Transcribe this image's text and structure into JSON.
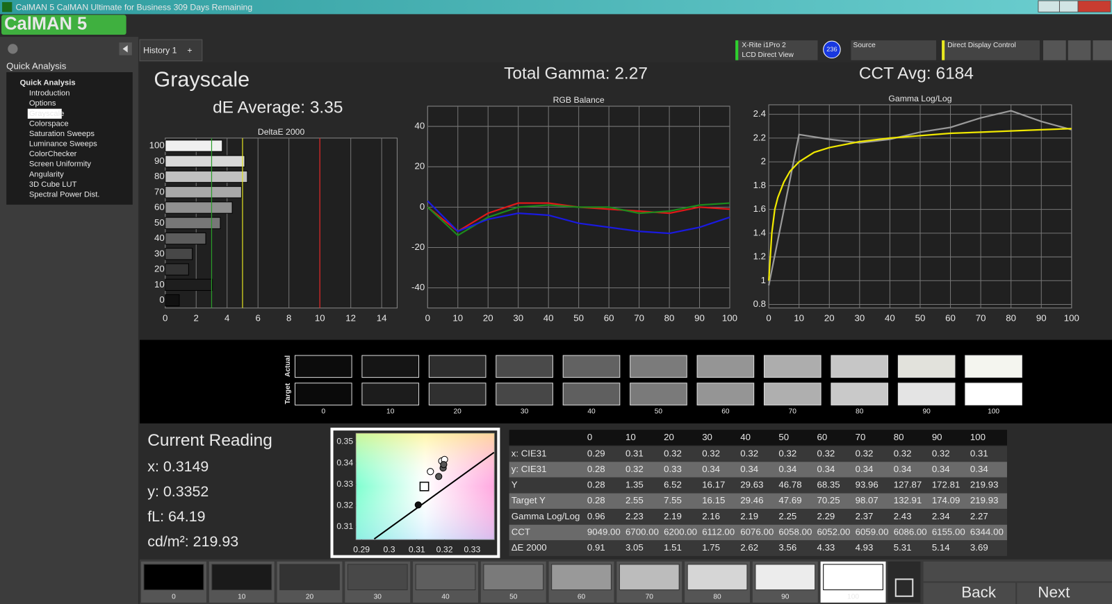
{
  "window": {
    "title": "CalMAN 5 CalMAN Ultimate for Business 309 Days Remaining",
    "logo": "CalMAN 5"
  },
  "sidebar": {
    "header": "Quick Analysis",
    "tree_root": "Quick Analysis",
    "items": [
      "Introduction",
      "Options",
      "Grayscale",
      "Colorspace",
      "Saturation Sweeps",
      "Luminance Sweeps",
      "ColorChecker",
      "Screen Uniformity",
      "Angularity",
      "3D Cube LUT",
      "Spectral Power Dist."
    ],
    "selected": 2
  },
  "tabs": [
    "History 1",
    "+"
  ],
  "devices": {
    "meter": "X-Rite i1Pro 2",
    "meter_mode": "LCD Direct View",
    "badge": "236",
    "source": "Source",
    "display": "Direct Display Control"
  },
  "summary": {
    "page": "Grayscale",
    "de_average": "dE Average: 3.35",
    "total_gamma": "Total Gamma: 2.27",
    "cct_avg": "CCT Avg: 6184"
  },
  "swatches": {
    "actual_label": "Actual",
    "target_label": "Target",
    "labels": [
      "0",
      "10",
      "20",
      "30",
      "40",
      "50",
      "60",
      "70",
      "80",
      "90",
      "100"
    ],
    "actual_colors": [
      "#0c0c0c",
      "#151515",
      "#2e2e2e",
      "#4a4a4a",
      "#626262",
      "#7b7b7b",
      "#959595",
      "#adadad",
      "#c6c6c6",
      "#e2e2dc",
      "#f4f5ef"
    ],
    "target_colors": [
      "#0a0a0a",
      "#1c1c1c",
      "#303030",
      "#474747",
      "#5f5f5f",
      "#7a7a7a",
      "#959595",
      "#afafaf",
      "#c9c9c9",
      "#e4e4e4",
      "#ffffff"
    ]
  },
  "current_reading": {
    "title": "Current Reading",
    "lines": [
      "x: 0.3149",
      "y: 0.3352",
      "fL: 64.19",
      "cd/m²: 219.93"
    ]
  },
  "table": {
    "columns": [
      "0",
      "10",
      "20",
      "30",
      "40",
      "50",
      "60",
      "70",
      "80",
      "90",
      "100"
    ],
    "rows": [
      {
        "label": "x: CIE31",
        "cells": [
          "0.29",
          "0.31",
          "0.32",
          "0.32",
          "0.32",
          "0.32",
          "0.32",
          "0.32",
          "0.32",
          "0.32",
          "0.31"
        ]
      },
      {
        "label": "y: CIE31",
        "cells": [
          "0.28",
          "0.32",
          "0.33",
          "0.34",
          "0.34",
          "0.34",
          "0.34",
          "0.34",
          "0.34",
          "0.34",
          "0.34"
        ]
      },
      {
        "label": "Y",
        "cells": [
          "0.28",
          "1.35",
          "6.52",
          "16.17",
          "29.63",
          "46.78",
          "68.35",
          "93.96",
          "127.87",
          "172.81",
          "219.93"
        ]
      },
      {
        "label": "Target Y",
        "cells": [
          "0.28",
          "2.55",
          "7.55",
          "16.15",
          "29.46",
          "47.69",
          "70.25",
          "98.07",
          "132.91",
          "174.09",
          "219.93"
        ]
      },
      {
        "label": "Gamma Log/Log",
        "cells": [
          "0.96",
          "2.23",
          "2.19",
          "2.16",
          "2.19",
          "2.25",
          "2.29",
          "2.37",
          "2.43",
          "2.34",
          "2.27"
        ]
      },
      {
        "label": "CCT",
        "cells": [
          "9049.00",
          "6700.00",
          "6200.00",
          "6112.00",
          "6076.00",
          "6058.00",
          "6052.00",
          "6059.00",
          "6086.00",
          "6155.00",
          "6344.00"
        ]
      },
      {
        "label": "ΔE 2000",
        "cells": [
          "0.91",
          "3.05",
          "1.51",
          "1.75",
          "2.62",
          "3.56",
          "4.33",
          "4.93",
          "5.31",
          "5.14",
          "3.69"
        ]
      }
    ]
  },
  "patches": {
    "labels": [
      "0",
      "10",
      "20",
      "30",
      "40",
      "50",
      "60",
      "70",
      "80",
      "90",
      "100"
    ],
    "colors": [
      "#000000",
      "#1a1a1a",
      "#333333",
      "#484848",
      "#5e5e5e",
      "#7a7a7a",
      "#999999",
      "#bcbcbc",
      "#d6d6d6",
      "#ececec",
      "#ffffff"
    ],
    "selected": 10
  },
  "nav": {
    "back": "Back",
    "next": "Next"
  },
  "chart_data": [
    {
      "type": "hbar",
      "title": "DeltaE 2000",
      "categories": [
        "0",
        "10",
        "20",
        "30",
        "40",
        "50",
        "60",
        "70",
        "80",
        "90",
        "100"
      ],
      "values": [
        0.91,
        3.05,
        1.51,
        1.75,
        2.62,
        3.56,
        4.33,
        4.93,
        5.31,
        5.14,
        3.69
      ],
      "colors": [
        "#111111",
        "#1e1e1e",
        "#333333",
        "#474747",
        "#5c5c5c",
        "#777777",
        "#909090",
        "#a8a8a8",
        "#c0c0c0",
        "#d8d8d8",
        "#f0f0f0"
      ],
      "xlim": [
        0,
        15
      ],
      "xticks": [
        0,
        2,
        4,
        6,
        8,
        10,
        12,
        14
      ],
      "grid": true,
      "reference_lines": [
        {
          "value": 3,
          "color": "#2a9d2a"
        },
        {
          "value": 5,
          "color": "#e0e020"
        },
        {
          "value": 10,
          "color": "#e02020"
        }
      ]
    },
    {
      "type": "line",
      "title": "RGB Balance",
      "x": [
        0,
        10,
        20,
        30,
        40,
        50,
        60,
        70,
        80,
        90,
        100
      ],
      "series": [
        {
          "color": "#e01818",
          "values": [
            0,
            -12,
            -3,
            2,
            2,
            0,
            -1,
            -2,
            -3,
            0,
            -1
          ]
        },
        {
          "color": "#1c8a1c",
          "values": [
            0,
            -14,
            -5,
            0,
            1,
            0,
            0,
            -3,
            -2,
            1,
            2
          ]
        },
        {
          "color": "#1a1ae0",
          "values": [
            3,
            -12,
            -6,
            -3,
            -4,
            -8,
            -10,
            -12,
            -13,
            -10,
            -5
          ]
        }
      ],
      "xlim": [
        0,
        100
      ],
      "xticks": [
        0,
        10,
        20,
        30,
        40,
        50,
        60,
        70,
        80,
        90,
        100
      ],
      "ylim": [
        -50,
        50
      ],
      "yticks": [
        -40,
        -20,
        0,
        20,
        40
      ],
      "grid": true
    },
    {
      "type": "line",
      "title": "Gamma Log/Log",
      "series": [
        {
          "color": "#9a9a9a",
          "x": [
            0,
            10,
            20,
            30,
            40,
            50,
            60,
            70,
            80,
            90,
            100
          ],
          "values": [
            0.96,
            2.23,
            2.19,
            2.16,
            2.19,
            2.25,
            2.29,
            2.37,
            2.43,
            2.34,
            2.27
          ]
        },
        {
          "color": "#f0e800",
          "x": [
            0,
            1,
            2,
            3,
            5,
            7,
            10,
            15,
            20,
            30,
            40,
            50,
            60,
            70,
            80,
            90,
            100
          ],
          "values": [
            1.0,
            1.4,
            1.6,
            1.7,
            1.83,
            1.92,
            2.0,
            2.08,
            2.12,
            2.17,
            2.2,
            2.22,
            2.24,
            2.25,
            2.26,
            2.27,
            2.28
          ]
        }
      ],
      "xlim": [
        0,
        100
      ],
      "xticks": [
        0,
        10,
        20,
        30,
        40,
        50,
        60,
        70,
        80,
        90,
        100
      ],
      "ylim": [
        0.77,
        2.48
      ],
      "yticks": [
        0.8,
        1,
        1.2,
        1.4,
        1.6,
        1.8,
        2,
        2.2,
        2.4
      ],
      "grid": true
    },
    {
      "type": "scatter",
      "series": [
        {
          "color": "#ffffff",
          "x": [
            0.3149,
            0.319,
            0.32
          ],
          "values": [
            0.336,
            0.341,
            0.3417
          ]
        },
        {
          "color": "#555555",
          "x": [
            0.3179,
            0.3195,
            0.3197
          ],
          "values": [
            0.3337,
            0.3377,
            0.3393
          ]
        },
        {
          "color": "#111111",
          "x": [
            0.3105
          ],
          "values": [
            0.3203
          ]
        }
      ],
      "target": {
        "x": 0.3127,
        "y": 0.329
      },
      "locus": {
        "x": [
          0.2946,
          0.3131,
          0.3379
        ],
        "values": [
          0.3043,
          0.3217,
          0.345
        ]
      },
      "xlim": [
        0.288,
        0.338
      ],
      "xticks": [
        0.29,
        0.3,
        0.31,
        0.32,
        0.33
      ],
      "ylim": [
        0.304,
        0.354
      ],
      "yticks": [
        0.31,
        0.32,
        0.33,
        0.34,
        0.35
      ]
    }
  ]
}
